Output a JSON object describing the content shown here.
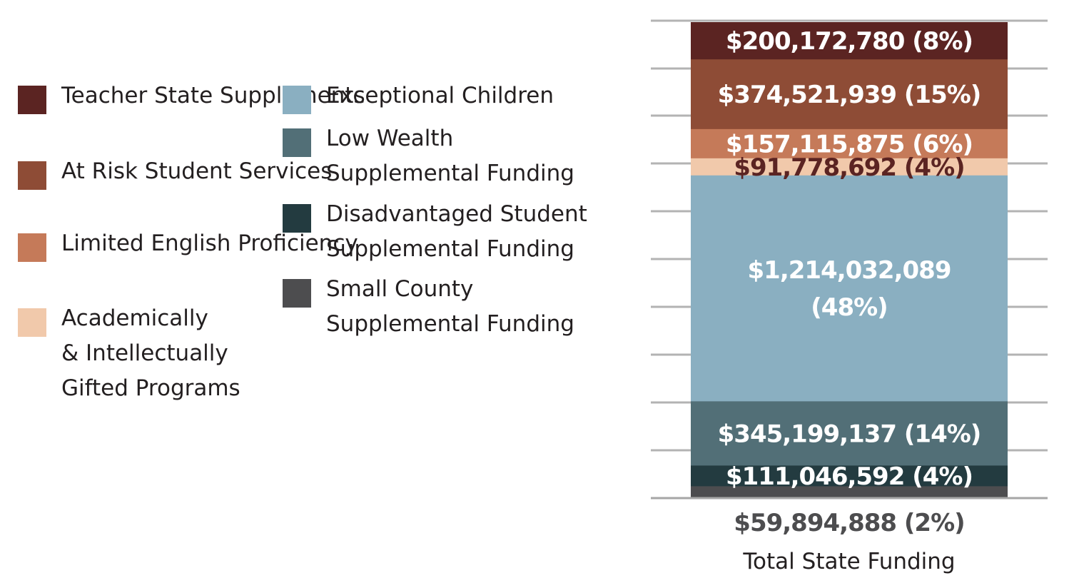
{
  "chart_data": {
    "type": "bar",
    "stacked": true,
    "categories": [
      "Total State Funding"
    ],
    "series": [
      {
        "name": "Teacher State Supplements",
        "value": 200172780,
        "label": "$200,172,780 (8%)",
        "color": "#5b2422",
        "label_color": "#ffffff"
      },
      {
        "name": "At Risk Student Services",
        "value": 374521939,
        "label": "$374,521,939 (15%)",
        "color": "#8e4c36",
        "label_color": "#ffffff"
      },
      {
        "name": "Limited English Proficiency",
        "value": 157115875,
        "label": "$157,115,875 (6%)",
        "color": "#c57a59",
        "label_color": "#ffffff"
      },
      {
        "name": "Academically\n& Intellectually\nGifted Programs",
        "value": 91778692,
        "label": "$91,778,692 (4%)",
        "color": "#f1c9ab",
        "label_color": "#5b2422"
      },
      {
        "name": "Exceptional Children",
        "value": 1214032089,
        "label": "$1,214,032,089\n(48%)",
        "color": "#8aafc1",
        "label_color": "#ffffff"
      },
      {
        "name": "Low Wealth\nSupplemental Funding",
        "value": 345199137,
        "label": "$345,199,137 (14%)",
        "color": "#526f77",
        "label_color": "#ffffff"
      },
      {
        "name": "Disadvantaged Student\nSupplemental Funding",
        "value": 111046592,
        "label": "$111,046,592 (4%)",
        "color": "#233b40",
        "label_color": "#ffffff"
      },
      {
        "name": "Small County\nSupplemental Funding",
        "value": 59894888,
        "label": "$59,894,888 (2%)",
        "color": "#4d4d4f",
        "label_color": "#4d4d4f"
      }
    ],
    "grid": true,
    "legend_placement": "left",
    "title": "",
    "xlabel": "",
    "ylabel": ""
  }
}
